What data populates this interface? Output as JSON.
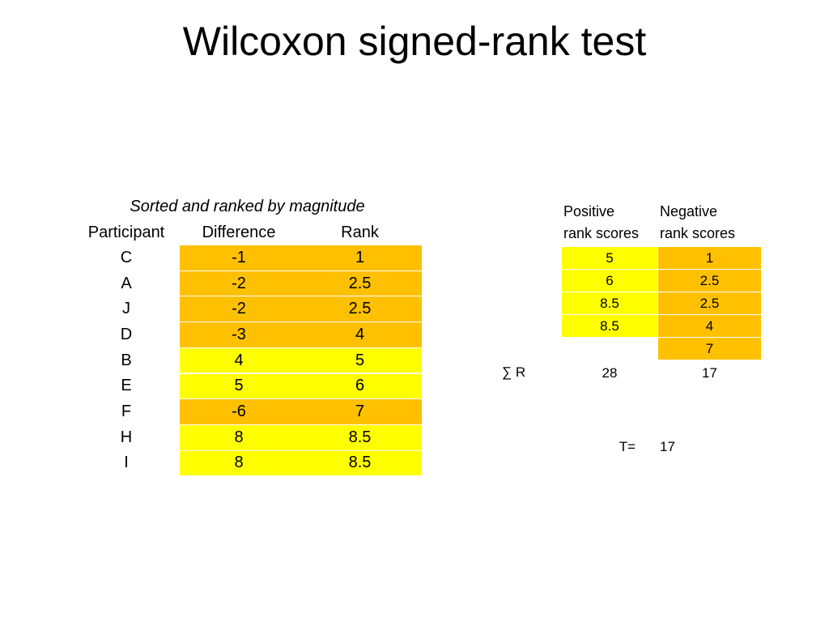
{
  "title": "Wilcoxon signed-rank test",
  "left_table": {
    "caption": "Sorted and ranked by magnitude",
    "headers": [
      "Participant",
      "Difference",
      "Rank"
    ],
    "rows": [
      {
        "cells": [
          "C",
          -1,
          1
        ],
        "color": "#ffc000"
      },
      {
        "cells": [
          "A",
          -2,
          2.5
        ],
        "color": "#ffc000"
      },
      {
        "cells": [
          "J",
          -2,
          2.5
        ],
        "color": "#ffc000"
      },
      {
        "cells": [
          "D",
          -3,
          4
        ],
        "color": "#ffc000"
      },
      {
        "cells": [
          "B",
          4,
          5
        ],
        "color": "#ffff00"
      },
      {
        "cells": [
          "E",
          5,
          6
        ],
        "color": "#ffff00"
      },
      {
        "cells": [
          "F",
          -6,
          7
        ],
        "color": "#ffc000"
      },
      {
        "cells": [
          "H",
          8,
          8.5
        ],
        "color": "#ffff00"
      },
      {
        "cells": [
          "I",
          8,
          8.5
        ],
        "color": "#ffff00"
      }
    ]
  },
  "right_table": {
    "columns": [
      {
        "header": [
          "Positive",
          "rank scores"
        ],
        "values": [
          5,
          6,
          8.5,
          8.5
        ],
        "color": "#ffff00",
        "sum": 28
      },
      {
        "header": [
          "Negative",
          "rank scores"
        ],
        "values": [
          1,
          2.5,
          2.5,
          4,
          7
        ],
        "color": "#ffc000",
        "sum": 17
      }
    ],
    "sum_label": "∑ R",
    "t_label": "T=",
    "t_value": 17
  }
}
